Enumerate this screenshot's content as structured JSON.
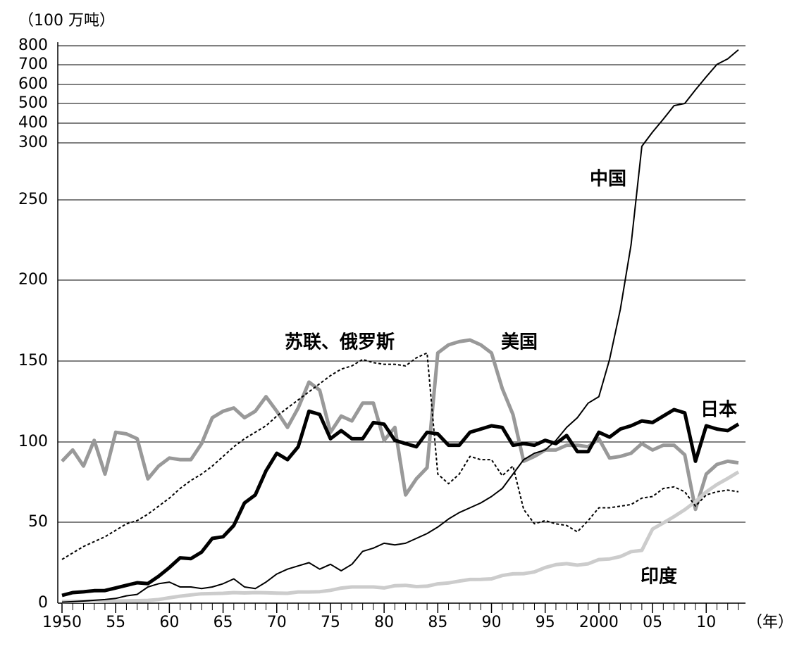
{
  "chart_data": {
    "type": "line",
    "y_unit": "（100 万吨）",
    "x_unit": "（年）",
    "x": [
      1950,
      1951,
      1952,
      1953,
      1954,
      1955,
      1956,
      1957,
      1958,
      1959,
      1960,
      1961,
      1962,
      1963,
      1964,
      1965,
      1966,
      1967,
      1968,
      1969,
      1970,
      1971,
      1972,
      1973,
      1974,
      1975,
      1976,
      1977,
      1978,
      1979,
      1980,
      1981,
      1982,
      1983,
      1984,
      1985,
      1986,
      1987,
      1988,
      1989,
      1990,
      1991,
      1992,
      1993,
      1994,
      1995,
      1996,
      1997,
      1998,
      1999,
      2000,
      2001,
      2002,
      2003,
      2004,
      2005,
      2006,
      2007,
      2008,
      2009,
      2010,
      2011,
      2012,
      2013
    ],
    "xlim": [
      1950,
      2013
    ],
    "xticks": [
      {
        "value": 1950,
        "label": "1950"
      },
      {
        "value": 1955,
        "label": "55"
      },
      {
        "value": 1960,
        "label": "60"
      },
      {
        "value": 1965,
        "label": "65"
      },
      {
        "value": 1970,
        "label": "70"
      },
      {
        "value": 1975,
        "label": "75"
      },
      {
        "value": 1980,
        "label": "80"
      },
      {
        "value": 1985,
        "label": "85"
      },
      {
        "value": 1990,
        "label": "90"
      },
      {
        "value": 1995,
        "label": "95"
      },
      {
        "value": 2000,
        "label": "2000"
      },
      {
        "value": 2005,
        "label": "05"
      },
      {
        "value": 2010,
        "label": "10"
      }
    ],
    "ylim": [
      0,
      800
    ],
    "yticks": [
      0,
      50,
      100,
      150,
      200,
      250,
      300,
      400,
      500,
      600,
      700,
      800
    ],
    "grid": true,
    "series": [
      {
        "name": "美国",
        "color": "#999999",
        "line_style": "solid",
        "values": [
          88,
          95,
          85,
          101,
          80,
          106,
          105,
          102,
          77,
          85,
          90,
          89,
          89,
          99,
          115,
          119,
          121,
          115,
          119,
          128,
          119,
          109,
          121,
          137,
          132,
          106,
          116,
          113,
          124,
          124,
          101,
          109,
          67,
          77,
          84,
          155,
          160,
          162,
          163,
          160,
          155,
          133,
          117,
          88,
          91,
          95,
          95,
          98,
          98,
          97,
          102,
          90,
          91,
          93,
          99,
          95,
          98,
          98,
          92,
          58,
          80,
          86,
          88,
          87
        ]
      },
      {
        "name": "印度",
        "color": "#cccccc",
        "line_style": "solid",
        "values": [
          1.0,
          1.1,
          1.1,
          1.1,
          1.2,
          1.3,
          1.4,
          1.5,
          1.7,
          2.2,
          3.3,
          4.3,
          5.1,
          5.8,
          5.9,
          6.1,
          6.5,
          6.3,
          6.5,
          6.4,
          6.2,
          6.1,
          6.9,
          6.9,
          7.1,
          7.9,
          9.3,
          10,
          10,
          10,
          9.4,
          10.8,
          11,
          10.2,
          10.5,
          11.9,
          12.5,
          13.6,
          14.6,
          14.7,
          15,
          17.1,
          18.1,
          18.2,
          19.3,
          22,
          23.8,
          24.4,
          23.5,
          24.3,
          26.9,
          27.3,
          28.8,
          31.8,
          32.6,
          45.8,
          49.5,
          53.5,
          57.8,
          62.8,
          68.9,
          73.5,
          77.3,
          81.3
        ]
      },
      {
        "name": "苏联、俄罗斯",
        "color": "#000000",
        "line_style": "dotted",
        "values": [
          27,
          31,
          35,
          38,
          41,
          45,
          49,
          51,
          55,
          60,
          65,
          71,
          76,
          80,
          85,
          91,
          97,
          102,
          106,
          110,
          116,
          121,
          126,
          131,
          136,
          141,
          145,
          147,
          151,
          149,
          148,
          148,
          147,
          152,
          155,
          80,
          74,
          80,
          91,
          89,
          89,
          79,
          85,
          58,
          49,
          51,
          49,
          48,
          44,
          51,
          59,
          59,
          60,
          61,
          65,
          66,
          71,
          72,
          69,
          60,
          67,
          69,
          70,
          69
        ]
      },
      {
        "name": "中国",
        "color": "#000000",
        "line_style": "solid",
        "values": [
          0.6,
          0.9,
          1.3,
          1.8,
          2.2,
          2.9,
          4.5,
          5.4,
          10,
          12,
          13,
          10,
          10,
          9,
          10,
          12,
          15,
          10,
          9,
          13,
          18,
          21,
          23,
          25,
          21,
          24,
          20,
          24,
          32,
          34,
          37,
          36,
          37,
          40,
          43,
          47,
          52,
          56,
          59,
          62,
          66,
          71,
          80,
          89,
          93,
          95,
          101,
          109,
          115,
          124,
          128,
          151,
          182,
          222,
          297,
          355,
          420,
          489,
          500,
          572,
          639,
          702,
          731,
          779
        ]
      },
      {
        "name": "日本",
        "color": "#000000",
        "line_style": "solid",
        "values": [
          4.8,
          6.5,
          7,
          7.7,
          7.8,
          9.4,
          11,
          12.6,
          12.1,
          16.6,
          22,
          28,
          27.5,
          31.5,
          40,
          41,
          48,
          62,
          67,
          82,
          93,
          89,
          97,
          119,
          117,
          102,
          107,
          102,
          102,
          112,
          111,
          101,
          99,
          97,
          106,
          105,
          98,
          98,
          106,
          108,
          110,
          109,
          98,
          99,
          98,
          101,
          99,
          104,
          94,
          94,
          106,
          103,
          108,
          110,
          113,
          112,
          116,
          120,
          118,
          88,
          110,
          108,
          107,
          111
        ]
      }
    ]
  }
}
